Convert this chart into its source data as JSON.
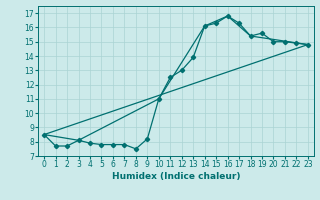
{
  "title": "",
  "xlabel": "Humidex (Indice chaleur)",
  "ylabel": "",
  "bg_color": "#cceaea",
  "grid_color": "#aad4d4",
  "line_color": "#007070",
  "xlim": [
    -0.5,
    23.5
  ],
  "ylim": [
    7,
    17.5
  ],
  "xticks": [
    0,
    1,
    2,
    3,
    4,
    5,
    6,
    7,
    8,
    9,
    10,
    11,
    12,
    13,
    14,
    15,
    16,
    17,
    18,
    19,
    20,
    21,
    22,
    23
  ],
  "yticks": [
    7,
    8,
    9,
    10,
    11,
    12,
    13,
    14,
    15,
    16,
    17
  ],
  "series1_x": [
    0,
    1,
    2,
    3,
    4,
    5,
    6,
    7,
    8,
    9,
    10,
    11,
    12,
    13,
    14,
    15,
    16,
    17,
    18,
    19,
    20,
    21,
    22,
    23
  ],
  "series1_y": [
    8.5,
    7.7,
    7.7,
    8.1,
    7.9,
    7.8,
    7.8,
    7.8,
    7.5,
    8.2,
    11.0,
    12.5,
    13.0,
    13.9,
    16.1,
    16.3,
    16.8,
    16.3,
    15.4,
    15.6,
    15.0,
    15.0,
    14.9,
    14.8
  ],
  "series2_x": [
    0,
    3,
    10,
    14,
    16,
    18,
    23
  ],
  "series2_y": [
    8.5,
    8.1,
    11.0,
    16.1,
    16.8,
    15.4,
    14.8
  ],
  "series3_x": [
    0,
    23
  ],
  "series3_y": [
    8.5,
    14.8
  ],
  "marker": "D",
  "markersize": 2.2,
  "linewidth": 0.9,
  "tick_fontsize": 5.5,
  "xlabel_fontsize": 6.5
}
